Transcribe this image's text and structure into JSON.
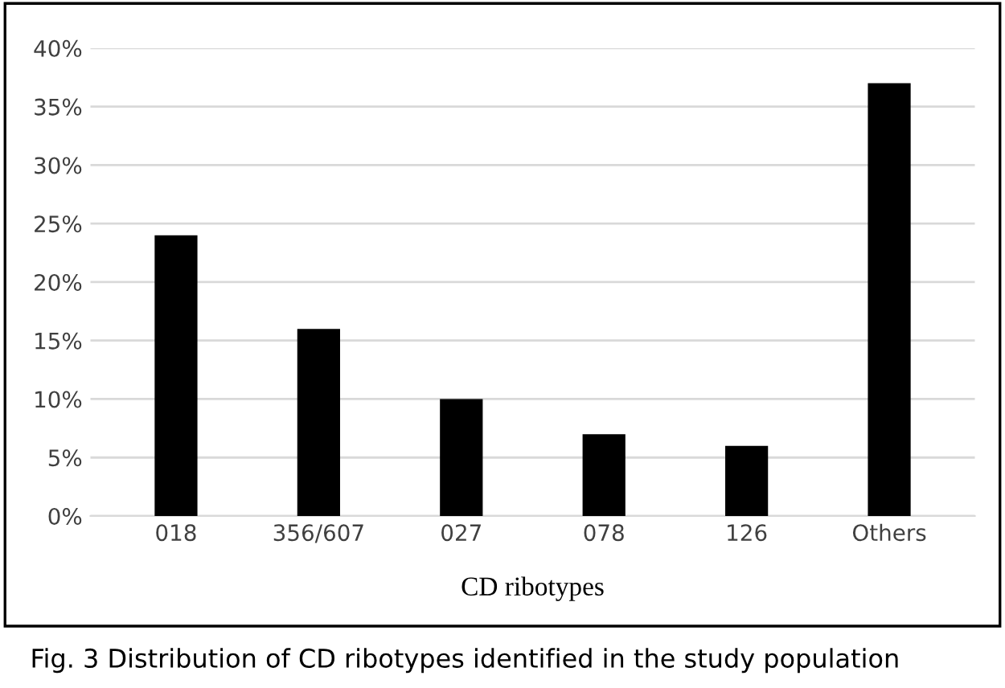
{
  "chart_data": {
    "type": "bar",
    "xlabel": "CD ribotypes",
    "categories": [
      "018",
      "356/607",
      "027",
      "078",
      "126",
      "Others"
    ],
    "values": [
      24,
      16,
      10,
      7,
      6,
      37
    ],
    "color": "#000000",
    "ylim": [
      0,
      40
    ],
    "yticks": [
      {
        "value": 0,
        "label": "0%"
      },
      {
        "value": 5,
        "label": "5%"
      },
      {
        "value": 10,
        "label": "10%"
      },
      {
        "value": 15,
        "label": "15%"
      },
      {
        "value": 20,
        "label": "20%"
      },
      {
        "value": 25,
        "label": "25%"
      },
      {
        "value": 30,
        "label": "30%"
      },
      {
        "value": 35,
        "label": "35%"
      },
      {
        "value": 40,
        "label": "40%"
      }
    ],
    "grid": "y",
    "legend": false,
    "annotations": [
      "Fig. 3 Distribution of CD ribotypes identified in the study population"
    ]
  }
}
